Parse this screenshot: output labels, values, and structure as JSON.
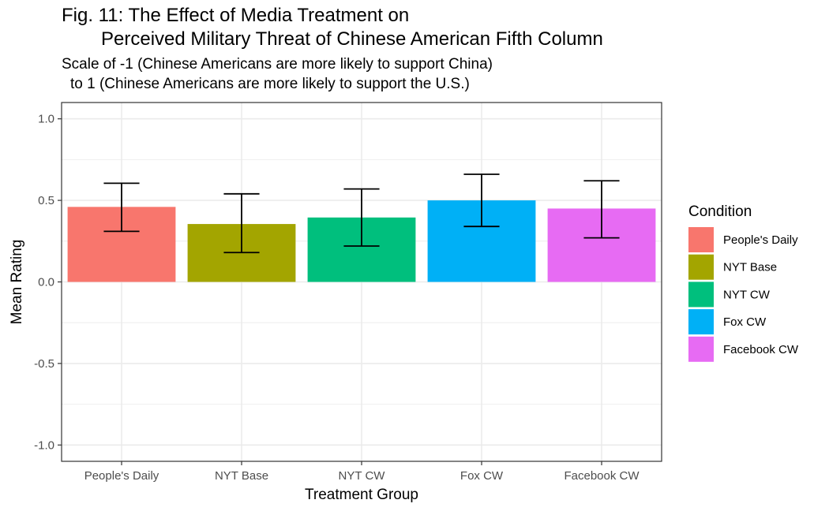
{
  "chart_data": {
    "type": "bar",
    "title": "Fig. 11: The Effect of Media Treatment on",
    "title_line2": "Perceived Military Threat of Chinese American Fifth Column",
    "subtitle": "Scale of -1 (Chinese Americans are more likely to support China)",
    "subtitle_line2": "to 1 (Chinese Americans are more likely to support the U.S.)",
    "xlabel": "Treatment Group",
    "ylabel": "Mean Rating",
    "ylim": [
      -1.1,
      1.1
    ],
    "y_ticks": [
      1.0,
      0.5,
      0.0,
      -0.5,
      -1.0
    ],
    "y_tick_labels": [
      "1.0",
      "0.5",
      "0.0",
      "-0.5",
      "-1.0"
    ],
    "categories": [
      "People's Daily",
      "NYT Base",
      "NYT CW",
      "Fox CW",
      "Facebook CW"
    ],
    "values": [
      0.46,
      0.355,
      0.395,
      0.5,
      0.45
    ],
    "error_low": [
      0.31,
      0.18,
      0.22,
      0.34,
      0.27
    ],
    "error_high": [
      0.605,
      0.54,
      0.57,
      0.66,
      0.62
    ],
    "colors": [
      "#F8766D",
      "#A3A500",
      "#00BF7D",
      "#00B0F6",
      "#E76BF3"
    ],
    "legend": {
      "title": "Condition",
      "position": "right",
      "entries": [
        "People's Daily",
        "NYT Base",
        "NYT CW",
        "Fox CW",
        "Facebook CW"
      ]
    },
    "grid": true,
    "panel_background": "#FFFFFF",
    "grid_color": "#EBEBEB"
  }
}
